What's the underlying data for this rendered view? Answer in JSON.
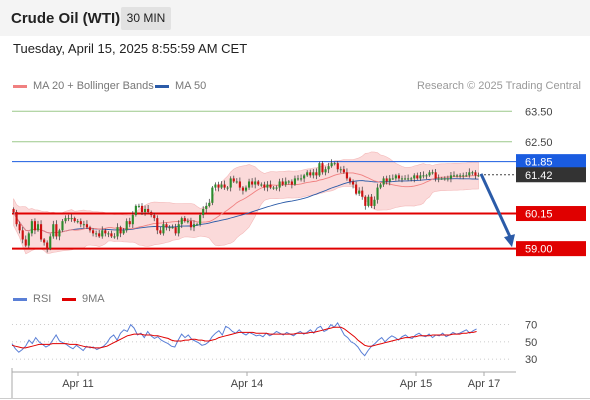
{
  "instrument": {
    "title": "Crude Oil (WTI)",
    "interval": "30 MIN"
  },
  "timestamp": "Tuesday, April 15, 2025 8:55:59 AM CET",
  "legend": {
    "ma20": {
      "label": "MA 20 + Bollinger Bands",
      "color": "#f08080"
    },
    "ma50": {
      "label": "MA 50",
      "color": "#2b5ba8"
    }
  },
  "watermark": "Research © 2025 Trading Central",
  "rsi_legend": {
    "rsi": {
      "label": "RSI",
      "color": "#5a7fd6"
    },
    "ma9": {
      "label": "9MA",
      "color": "#e00000"
    }
  },
  "colors": {
    "up": "#2e8b2e",
    "down": "#cc1111",
    "bb_fill": "#fbdada",
    "resistance": "#9bc88a",
    "pivot": "#e00000",
    "current": "#333333",
    "blue_level": "#1a5ce0",
    "arrow": "#2b5ba8"
  },
  "chart_data": {
    "type": "candlestick",
    "ylim": [
      58.3,
      64.0
    ],
    "levels": [
      {
        "value": 63.5,
        "label": "63.50",
        "kind": "resistance"
      },
      {
        "value": 62.5,
        "label": "62.50",
        "kind": "resistance"
      },
      {
        "value": 61.85,
        "label": "61.85",
        "kind": "blue"
      },
      {
        "value": 61.42,
        "label": "61.42",
        "kind": "current"
      },
      {
        "value": 60.15,
        "label": "60.15",
        "kind": "pivot"
      },
      {
        "value": 59.0,
        "label": "59.00",
        "kind": "pivot"
      }
    ],
    "forecast_arrow": {
      "from": 61.45,
      "to": 59.05
    },
    "x_ticks": [
      "Apr 11",
      "Apr 14",
      "Apr 15",
      "Apr 17"
    ],
    "closes": [
      60.2,
      59.8,
      59.6,
      59.3,
      59.1,
      59.5,
      59.9,
      59.6,
      59.8,
      59.3,
      59.2,
      59.0,
      59.4,
      59.8,
      59.4,
      59.6,
      59.9,
      60.0,
      60.0,
      60.0,
      59.9,
      59.9,
      59.8,
      59.8,
      59.7,
      59.6,
      59.5,
      59.5,
      59.4,
      59.6,
      59.5,
      59.5,
      59.4,
      59.4,
      59.7,
      59.5,
      59.6,
      59.9,
      59.8,
      60.1,
      60.4,
      60.4,
      60.2,
      60.3,
      60.2,
      60.1,
      60.0,
      59.6,
      59.5,
      59.8,
      59.7,
      59.7,
      59.7,
      59.5,
      59.8,
      60.0,
      59.9,
      59.9,
      59.7,
      59.8,
      59.8,
      60.1,
      60.3,
      60.4,
      60.5,
      61.0,
      61.1,
      61.0,
      61.1,
      61.0,
      61.0,
      61.3,
      61.2,
      61.2,
      61.0,
      60.9,
      61.0,
      61.2,
      61.1,
      61.2,
      61.1,
      61.1,
      61.0,
      61.1,
      61.0,
      61.0,
      61.0,
      61.2,
      61.1,
      61.2,
      61.2,
      61.1,
      61.3,
      61.3,
      61.3,
      61.4,
      61.5,
      61.4,
      61.5,
      61.4,
      61.8,
      61.5,
      61.6,
      61.7,
      61.8,
      61.8,
      61.6,
      61.6,
      61.5,
      61.3,
      61.2,
      61.1,
      60.8,
      60.9,
      60.7,
      60.4,
      60.7,
      60.4,
      60.6,
      61.0,
      61.1,
      61.3,
      61.2,
      61.3,
      61.3,
      61.4,
      61.3,
      61.3,
      61.3,
      61.3,
      61.3,
      61.4,
      61.3,
      61.4,
      61.4,
      61.4,
      61.5,
      61.5,
      61.3,
      61.3,
      61.3,
      61.3,
      61.3,
      61.4,
      61.4,
      61.4,
      61.4,
      61.4,
      61.4,
      61.5,
      61.5,
      61.4,
      61.4
    ],
    "rsi": [
      48,
      42,
      38,
      41,
      45,
      52,
      48,
      55,
      50,
      47,
      44,
      46,
      52,
      58,
      51,
      49,
      47,
      44,
      42,
      46,
      43,
      40,
      45,
      43,
      44,
      41,
      43,
      45,
      49,
      55,
      58,
      52,
      60,
      64,
      62,
      70,
      66,
      58,
      60,
      55,
      62,
      57,
      54,
      56,
      52,
      50,
      48,
      45,
      44,
      52,
      59,
      55,
      58,
      53,
      51,
      49,
      46,
      47,
      50,
      56,
      60,
      63,
      58,
      68,
      66,
      62,
      60,
      64,
      60,
      58,
      61,
      59,
      57,
      58,
      56,
      60,
      57,
      59,
      62,
      60,
      58,
      61,
      59,
      57,
      60,
      62,
      59,
      61,
      64,
      60,
      66,
      68,
      62,
      64,
      70,
      67,
      72,
      65,
      58,
      55,
      50,
      48,
      44,
      38,
      34,
      40,
      45,
      48,
      52,
      55,
      50,
      54,
      57,
      55,
      52,
      56,
      58,
      55,
      54,
      58,
      60,
      57,
      56,
      59,
      55,
      58,
      57,
      60,
      56,
      58,
      61,
      59,
      60,
      62,
      64,
      60,
      63,
      65
    ],
    "rsi_ma": [
      46,
      45,
      44,
      43,
      43,
      44,
      45,
      46,
      47,
      47,
      47,
      47,
      48,
      48,
      48,
      48,
      48,
      47,
      47,
      47,
      46,
      45,
      44,
      44,
      43,
      43,
      43,
      44,
      45,
      47,
      49,
      51,
      53,
      55,
      57,
      58,
      59,
      59,
      59,
      58,
      58,
      58,
      57,
      57,
      56,
      55,
      54,
      52,
      51,
      51,
      51,
      52,
      52,
      53,
      53,
      52,
      52,
      51,
      51,
      52,
      53,
      55,
      56,
      57,
      58,
      59,
      60,
      61,
      61,
      61,
      61,
      61,
      60,
      60,
      60,
      60,
      59,
      59,
      59,
      59,
      59,
      59,
      59,
      59,
      60,
      60,
      60,
      60,
      61,
      61,
      62,
      63,
      64,
      65,
      66,
      67,
      67,
      67,
      65,
      62,
      59,
      56,
      52,
      49,
      46,
      45,
      45,
      46,
      47,
      48,
      49,
      50,
      51,
      52,
      53,
      54,
      55,
      55,
      56,
      56,
      57,
      57,
      57,
      57,
      58,
      58,
      58,
      58,
      58,
      58,
      59,
      59,
      59,
      60,
      60,
      61,
      61,
      62
    ],
    "rsi_ticks": [
      "70",
      "50",
      "30"
    ],
    "rsi_ylim": [
      22,
      80
    ]
  }
}
